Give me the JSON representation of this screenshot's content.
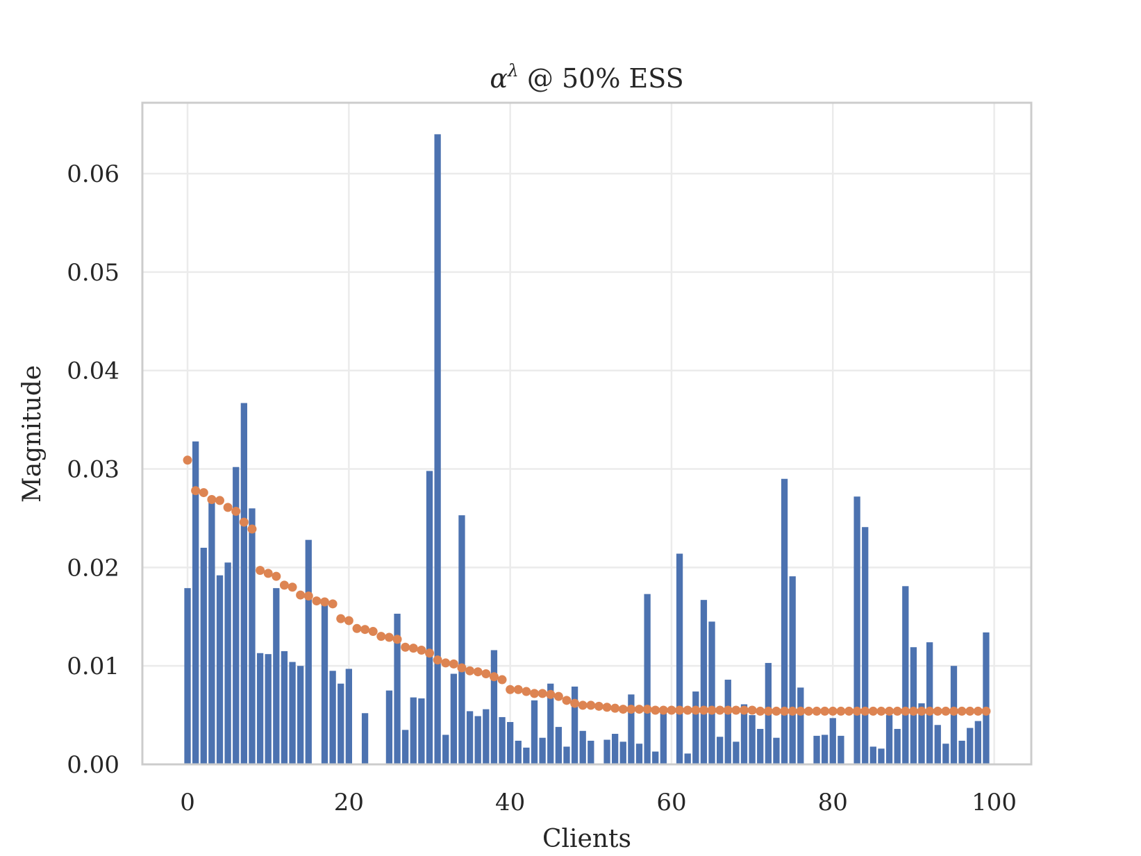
{
  "chart_data": {
    "type": "bar",
    "title_base": "α",
    "title_sup": "λ",
    "title_rest": " @ 50% ESS",
    "xlabel": "Clients",
    "ylabel": "Magnitude",
    "xlim": [
      -5.6,
      104.6
    ],
    "ylim": [
      0,
      0.0672
    ],
    "xticks": [
      0,
      20,
      40,
      60,
      80,
      100
    ],
    "yticks": [
      0.0,
      0.01,
      0.02,
      0.03,
      0.04,
      0.05,
      0.06
    ],
    "ytick_labels": [
      "0.00",
      "0.01",
      "0.02",
      "0.03",
      "0.04",
      "0.05",
      "0.06"
    ],
    "grid": true,
    "colors": {
      "bars": "#4c72b0",
      "dots": "#dd8452",
      "grid": "#ebebeb",
      "frame": "#cccccc"
    },
    "series": [
      {
        "kind": "bar",
        "values": [
          0.0179,
          0.0328,
          0.022,
          0.0268,
          0.0192,
          0.0205,
          0.0302,
          0.0367,
          0.026,
          0.0113,
          0.0112,
          0.0179,
          0.0115,
          0.0104,
          0.01,
          0.0228,
          0.0,
          0.0162,
          0.0095,
          0.0082,
          0.0097,
          0.0,
          0.0052,
          0.0,
          0.0,
          0.0075,
          0.0153,
          0.0035,
          0.0068,
          0.0067,
          0.0298,
          0.064,
          0.003,
          0.0092,
          0.0253,
          0.0054,
          0.0049,
          0.0056,
          0.0116,
          0.0048,
          0.0043,
          0.0024,
          0.0017,
          0.0065,
          0.0027,
          0.0082,
          0.0038,
          0.0018,
          0.0079,
          0.0034,
          0.0024,
          0.0,
          0.0025,
          0.0031,
          0.0023,
          0.0071,
          0.0021,
          0.0173,
          0.0013,
          0.0055,
          0.0,
          0.0214,
          0.0011,
          0.0074,
          0.0167,
          0.0145,
          0.0028,
          0.0086,
          0.0023,
          0.0061,
          0.005,
          0.0036,
          0.0103,
          0.0027,
          0.029,
          0.0191,
          0.0078,
          0.0,
          0.0029,
          0.003,
          0.0047,
          0.0029,
          0.0,
          0.0272,
          0.0241,
          0.0018,
          0.0016,
          0.005,
          0.0036,
          0.0181,
          0.0119,
          0.0062,
          0.0124,
          0.004,
          0.0021,
          0.01,
          0.0024,
          0.0037,
          0.0044,
          0.0134
        ]
      },
      {
        "kind": "scatter",
        "values": [
          0.0309,
          0.0278,
          0.0276,
          0.0269,
          0.0268,
          0.0261,
          0.0257,
          0.0246,
          0.0239,
          0.0197,
          0.0194,
          0.0191,
          0.0182,
          0.018,
          0.0172,
          0.0171,
          0.0166,
          0.0165,
          0.0163,
          0.0148,
          0.0146,
          0.0138,
          0.0137,
          0.0135,
          0.013,
          0.0129,
          0.0127,
          0.0119,
          0.0118,
          0.0116,
          0.0113,
          0.0106,
          0.0103,
          0.0102,
          0.0098,
          0.0095,
          0.0094,
          0.0092,
          0.0089,
          0.0086,
          0.0076,
          0.0076,
          0.0074,
          0.0072,
          0.0072,
          0.0071,
          0.0069,
          0.0065,
          0.0062,
          0.006,
          0.006,
          0.0059,
          0.0058,
          0.0057,
          0.0056,
          0.0056,
          0.0056,
          0.0056,
          0.0055,
          0.0055,
          0.0055,
          0.0055,
          0.0055,
          0.0055,
          0.0055,
          0.0055,
          0.0055,
          0.0055,
          0.0055,
          0.0055,
          0.0055,
          0.0054,
          0.0054,
          0.0054,
          0.0054,
          0.0054,
          0.0054,
          0.0054,
          0.0054,
          0.0054,
          0.0054,
          0.0054,
          0.0054,
          0.0054,
          0.0054,
          0.0054,
          0.0054,
          0.0054,
          0.0054,
          0.0054,
          0.0054,
          0.0054,
          0.0054,
          0.0054,
          0.0054,
          0.0054,
          0.0054,
          0.0054,
          0.0054,
          0.0054
        ]
      }
    ]
  }
}
